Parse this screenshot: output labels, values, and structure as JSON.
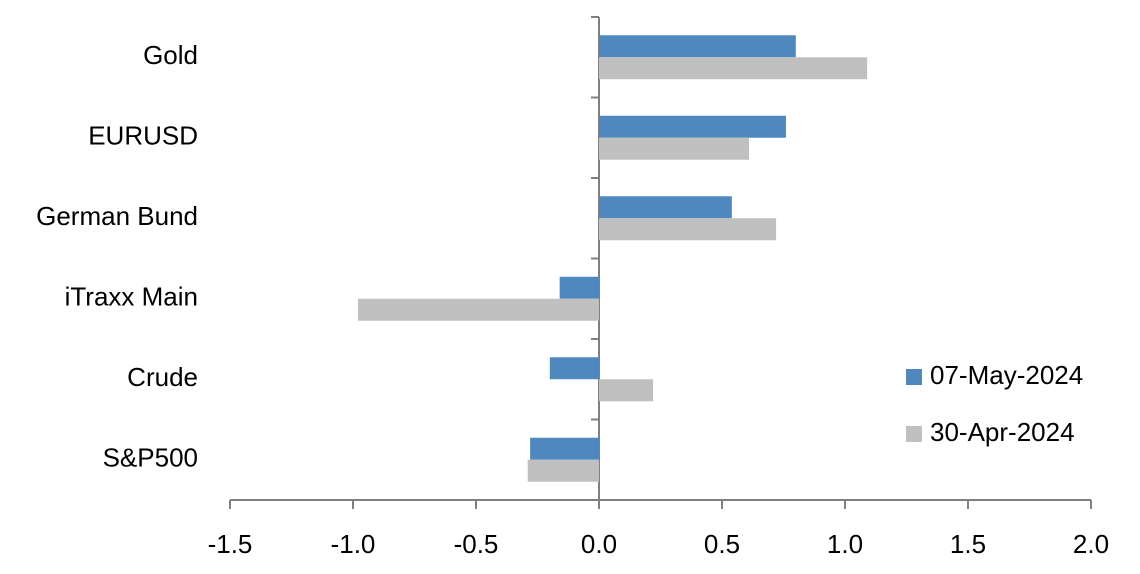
{
  "chart_data": {
    "type": "hbar",
    "categories": [
      "Gold",
      "EURUSD",
      "German Bund",
      "iTraxx Main",
      "Crude",
      "S&P500"
    ],
    "series": [
      {
        "name": "07-May-2024",
        "color": "#4f88bf",
        "values": [
          0.8,
          0.76,
          0.54,
          -0.16,
          -0.2,
          -0.28
        ]
      },
      {
        "name": "30-Apr-2024",
        "color": "#c0c0c0",
        "values": [
          1.09,
          0.61,
          0.72,
          -0.98,
          0.22,
          -0.29
        ]
      }
    ],
    "xlim": [
      -1.5,
      2.0
    ],
    "xticks": [
      -1.5,
      {
        "value": -1.0,
        "label": "-1.0"
      },
      -0.5,
      {
        "value": 0.0,
        "label": "0.0"
      },
      0.5,
      {
        "value": 1.0,
        "label": "1.0"
      },
      1.5,
      {
        "value": 2.0,
        "label": "2.0"
      }
    ],
    "legend": "lower right"
  }
}
